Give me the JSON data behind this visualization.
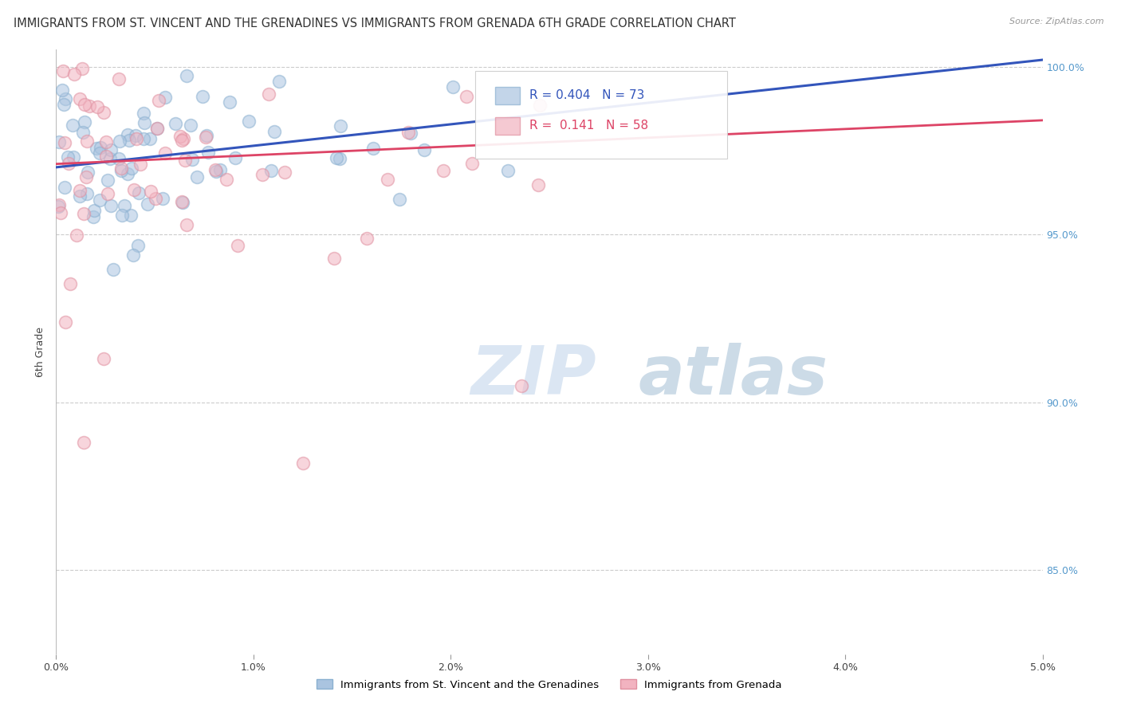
{
  "title": "IMMIGRANTS FROM ST. VINCENT AND THE GRENADINES VS IMMIGRANTS FROM GRENADA 6TH GRADE CORRELATION CHART",
  "source": "Source: ZipAtlas.com",
  "ylabel": "6th Grade",
  "xlim": [
    0.0,
    0.05
  ],
  "ylim": [
    0.825,
    1.005
  ],
  "xticks": [
    0.0,
    0.01,
    0.02,
    0.03,
    0.04,
    0.05
  ],
  "xticklabels": [
    "0.0%",
    "1.0%",
    "2.0%",
    "3.0%",
    "4.0%",
    "5.0%"
  ],
  "yticks": [
    0.85,
    0.9,
    0.95,
    1.0
  ],
  "yticklabels": [
    "85.0%",
    "90.0%",
    "95.0%",
    "100.0%"
  ],
  "blue_color": "#aac4e0",
  "pink_color": "#f2b3c0",
  "blue_line_color": "#3355bb",
  "pink_line_color": "#dd4466",
  "R_blue": 0.404,
  "N_blue": 73,
  "R_pink": 0.141,
  "N_pink": 58,
  "blue_line_x0": 0.0,
  "blue_line_y0": 0.97,
  "blue_line_x1": 0.05,
  "blue_line_y1": 1.002,
  "pink_line_x0": 0.0,
  "pink_line_y0": 0.971,
  "pink_line_x1": 0.05,
  "pink_line_y1": 0.984,
  "grid_color": "#cccccc",
  "background_color": "#ffffff",
  "title_fontsize": 10.5,
  "axis_label_fontsize": 9,
  "tick_fontsize": 9,
  "marker_size": 130,
  "marker_alpha": 0.55,
  "marker_linewidth": 1.2
}
